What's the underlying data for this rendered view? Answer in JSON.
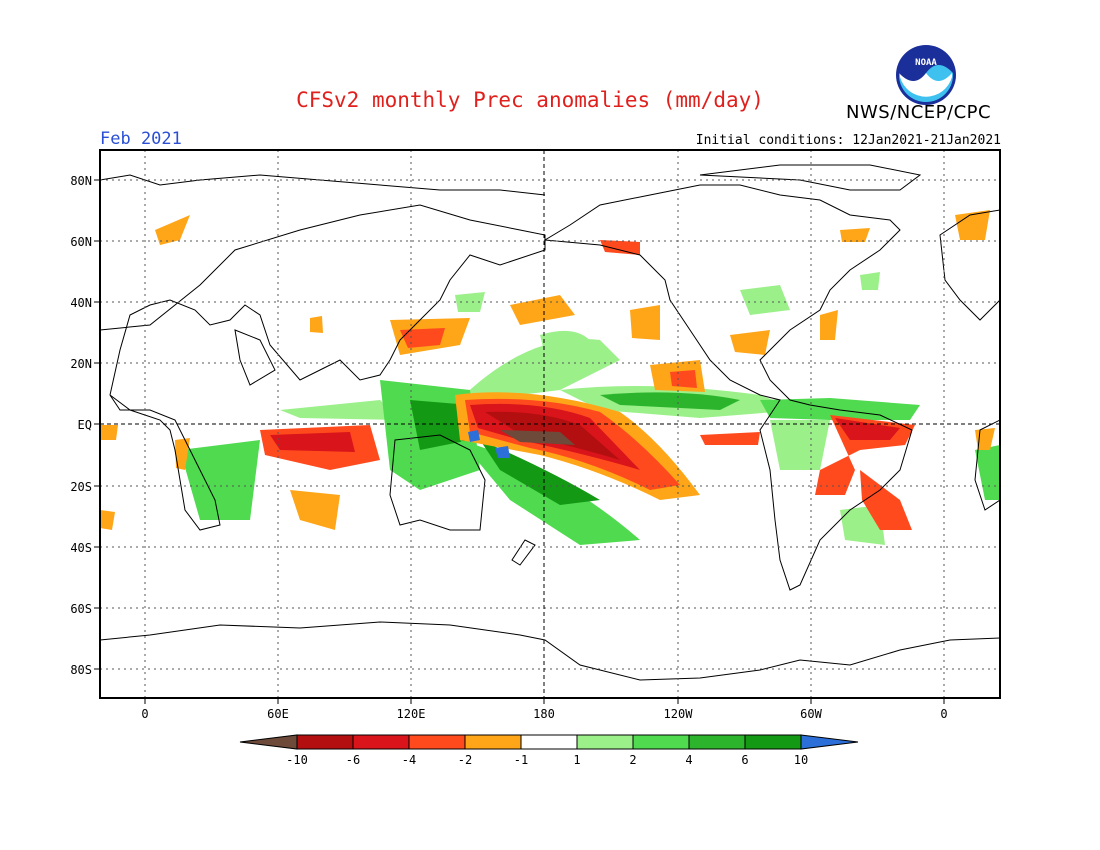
{
  "header": {
    "title": "CFSv2 monthly Prec anomalies (mm/day)",
    "agency": "NWS/NCEP/CPC",
    "month": "Feb 2021",
    "initial_conditions": "Initial conditions: 12Jan2021-21Jan2021",
    "logo_text": "NOAA"
  },
  "map": {
    "lat_labels": [
      "80N",
      "60N",
      "40N",
      "20N",
      "EQ",
      "20S",
      "40S",
      "60S",
      "80S"
    ],
    "lon_labels": [
      "0",
      "60E",
      "120E",
      "180",
      "120W",
      "60W",
      "0"
    ]
  },
  "colorbar": {
    "labels": [
      "-10",
      "-6",
      "-4",
      "-2",
      "-1",
      "1",
      "2",
      "4",
      "6",
      "10"
    ],
    "colors": {
      "below_-10": "#6e4a3a",
      "-10_to_-6": "#b40f10",
      "-6_to_-4": "#d9141a",
      "-4_to_-2": "#ff4a1e",
      "-2_to_-1": "#ffa518",
      "-1_to_1": "#ffffff",
      "1_to_2": "#9cf08a",
      "2_to_4": "#4fda4f",
      "4_to_6": "#2cb52c",
      "6_to_10": "#149914",
      "above_10": "#2c6fd8"
    }
  }
}
